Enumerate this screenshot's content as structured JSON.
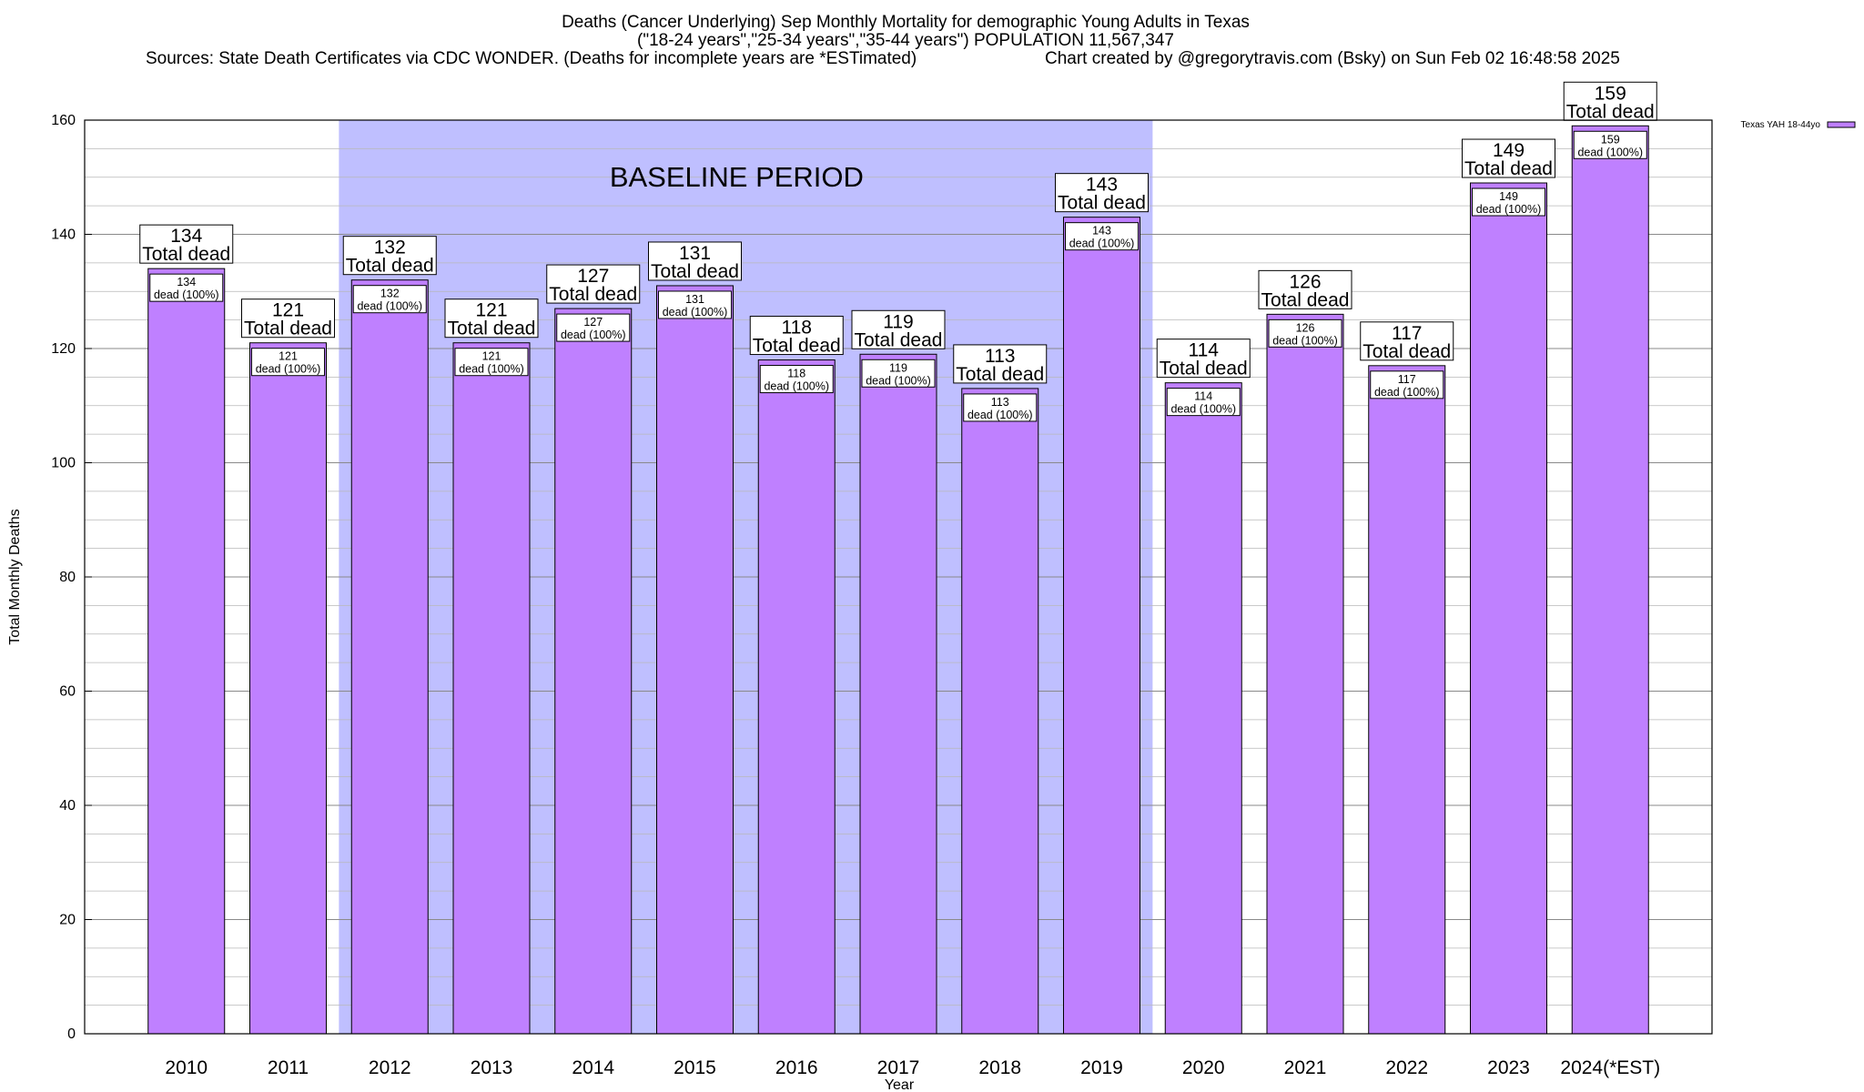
{
  "chart_data": {
    "type": "bar",
    "title_line1": "Deaths (Cancer Underlying) Sep Monthly Mortality for demographic Young Adults in Texas",
    "title_line2": "(\"18-24 years\",\"25-34 years\",\"35-44 years\") POPULATION 11,567,347",
    "title_line3_left": "Sources: State Death Certificates via CDC WONDER. (Deaths for incomplete years are *ESTimated)",
    "title_line3_right": "Chart created by @gregorytravis.com (Bsky) on Sun Feb 02 16:48:58 2025",
    "xlabel": "Year",
    "ylabel": "Total Monthly Deaths",
    "ylim": [
      0,
      160
    ],
    "yticks": [
      0,
      20,
      40,
      60,
      80,
      100,
      120,
      140,
      160
    ],
    "categories": [
      "2010",
      "2011",
      "2012",
      "2013",
      "2014",
      "2015",
      "2016",
      "2017",
      "2018",
      "2019",
      "2020",
      "2021",
      "2022",
      "2023",
      "2024(*EST)"
    ],
    "values": [
      134,
      121,
      132,
      121,
      127,
      131,
      118,
      119,
      113,
      143,
      114,
      126,
      117,
      149,
      159
    ],
    "total_label": "Total dead",
    "inner_label": "dead (100%)",
    "legend": {
      "label": "Texas YAH 18-44yo",
      "position": "top-right"
    },
    "baseline": {
      "label": "BASELINE PERIOD",
      "from": "2012",
      "to": "2019"
    },
    "colors": {
      "bar": "#bf80ff",
      "baseline": "#bfbfff",
      "grid": "#a0a0a0"
    }
  }
}
